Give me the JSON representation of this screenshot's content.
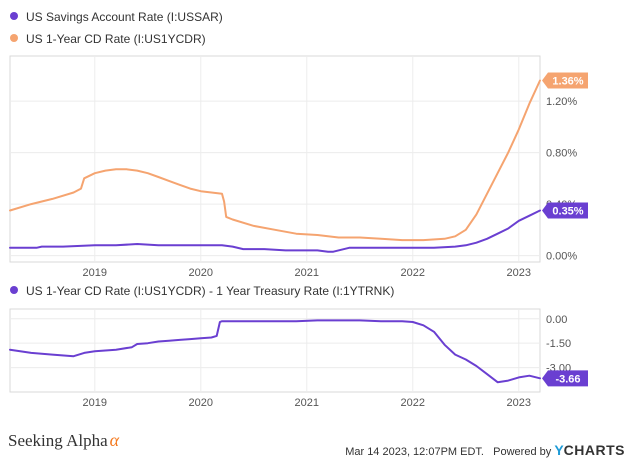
{
  "legend": {
    "top": [
      {
        "label": "US Savings Account Rate (I:USSAR)",
        "color": "#6a3fd1"
      },
      {
        "label": "US 1-Year CD Rate (I:US1YCDR)",
        "color": "#f5a470"
      }
    ],
    "bottom": [
      {
        "label": "US 1-Year CD Rate (I:US1YCDR) - 1 Year Treasury Rate (I:1YTRNK)",
        "color": "#6a3fd1"
      }
    ]
  },
  "footer": {
    "brand_left": "Seeking Alpha",
    "alpha_symbol": "α",
    "timestamp": "Mar 14 2023, 12:07PM EDT.",
    "powered_by": "Powered by",
    "ycharts_y": "Y",
    "ycharts_rest": "CHARTS"
  },
  "chart_data": [
    {
      "type": "line",
      "x_ticks": [
        "2019",
        "2020",
        "2021",
        "2022",
        "2023"
      ],
      "y_ticks": [
        "0.00%",
        "0.40%",
        "0.80%",
        "1.20%"
      ],
      "ylim": [
        -0.05,
        1.55
      ],
      "xlim": [
        2018.2,
        2023.2
      ],
      "grid": true,
      "series": [
        {
          "name": "US Savings Account Rate (I:USSAR)",
          "color": "#6a3fd1",
          "end_label": "0.35%",
          "x": [
            2018.2,
            2018.45,
            2018.5,
            2018.7,
            2019.0,
            2019.2,
            2019.4,
            2019.6,
            2019.8,
            2020.0,
            2020.2,
            2020.3,
            2020.4,
            2020.6,
            2020.8,
            2021.0,
            2021.1,
            2021.2,
            2021.25,
            2021.4,
            2021.6,
            2021.8,
            2022.0,
            2022.2,
            2022.4,
            2022.5,
            2022.6,
            2022.7,
            2022.8,
            2022.9,
            2023.0,
            2023.1,
            2023.2
          ],
          "y": [
            0.06,
            0.06,
            0.07,
            0.07,
            0.08,
            0.08,
            0.09,
            0.08,
            0.08,
            0.08,
            0.08,
            0.07,
            0.05,
            0.05,
            0.04,
            0.04,
            0.04,
            0.03,
            0.03,
            0.06,
            0.06,
            0.06,
            0.06,
            0.06,
            0.07,
            0.08,
            0.1,
            0.13,
            0.17,
            0.21,
            0.27,
            0.31,
            0.35
          ]
        },
        {
          "name": "US 1-Year CD Rate (I:US1YCDR)",
          "color": "#f5a470",
          "end_label": "1.36%",
          "x": [
            2018.2,
            2018.4,
            2018.6,
            2018.8,
            2018.87,
            2018.9,
            2019.0,
            2019.1,
            2019.2,
            2019.3,
            2019.4,
            2019.5,
            2019.6,
            2019.7,
            2019.8,
            2019.9,
            2020.0,
            2020.1,
            2020.2,
            2020.22,
            2020.24,
            2020.3,
            2020.5,
            2020.7,
            2020.9,
            2021.1,
            2021.3,
            2021.5,
            2021.7,
            2021.9,
            2022.1,
            2022.3,
            2022.4,
            2022.5,
            2022.6,
            2022.7,
            2022.8,
            2022.9,
            2023.0,
            2023.1,
            2023.2
          ],
          "y": [
            0.35,
            0.4,
            0.44,
            0.49,
            0.52,
            0.6,
            0.64,
            0.66,
            0.67,
            0.67,
            0.66,
            0.64,
            0.61,
            0.58,
            0.55,
            0.52,
            0.5,
            0.49,
            0.48,
            0.42,
            0.3,
            0.28,
            0.23,
            0.2,
            0.17,
            0.16,
            0.14,
            0.14,
            0.13,
            0.12,
            0.12,
            0.13,
            0.15,
            0.2,
            0.32,
            0.48,
            0.64,
            0.8,
            0.98,
            1.18,
            1.36
          ]
        }
      ]
    },
    {
      "type": "line",
      "x_ticks": [
        "2019",
        "2020",
        "2021",
        "2022",
        "2023"
      ],
      "y_ticks": [
        "0.00",
        "-1.50",
        "-3.00"
      ],
      "ylim": [
        -4.5,
        0.6
      ],
      "xlim": [
        2018.2,
        2023.2
      ],
      "grid": true,
      "series": [
        {
          "name": "US 1-Year CD Rate (I:US1YCDR) - 1 Year Treasury Rate (I:1YTRNK)",
          "color": "#6a3fd1",
          "end_label": "-3.66",
          "x": [
            2018.2,
            2018.4,
            2018.6,
            2018.8,
            2018.9,
            2019.0,
            2019.2,
            2019.35,
            2019.4,
            2019.5,
            2019.6,
            2019.7,
            2019.8,
            2019.9,
            2020.0,
            2020.1,
            2020.15,
            2020.18,
            2020.2,
            2020.3,
            2020.5,
            2020.7,
            2020.9,
            2021.1,
            2021.3,
            2021.5,
            2021.7,
            2021.9,
            2022.0,
            2022.1,
            2022.2,
            2022.3,
            2022.4,
            2022.5,
            2022.6,
            2022.7,
            2022.8,
            2022.9,
            2023.0,
            2023.1,
            2023.2
          ],
          "y": [
            -1.9,
            -2.1,
            -2.2,
            -2.3,
            -2.1,
            -2.0,
            -1.9,
            -1.75,
            -1.55,
            -1.5,
            -1.4,
            -1.35,
            -1.3,
            -1.25,
            -1.2,
            -1.15,
            -1.05,
            -0.2,
            -0.15,
            -0.15,
            -0.15,
            -0.15,
            -0.15,
            -0.1,
            -0.1,
            -0.1,
            -0.15,
            -0.15,
            -0.2,
            -0.4,
            -0.8,
            -1.6,
            -2.2,
            -2.5,
            -2.9,
            -3.4,
            -3.9,
            -3.8,
            -3.6,
            -3.5,
            -3.66
          ]
        }
      ]
    }
  ]
}
